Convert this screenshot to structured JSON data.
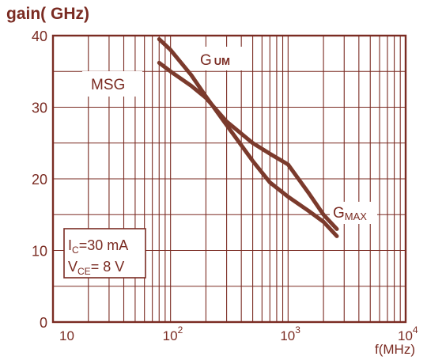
{
  "chart_data": {
    "type": "line",
    "ylabel": "gain( GHz)",
    "xlabel": "f(MHz)",
    "x_scale": "log",
    "xlim": [
      10,
      10000
    ],
    "ylim": [
      0,
      40
    ],
    "grid": true,
    "x_ticks": [
      {
        "value": 10,
        "base": "10",
        "exp": ""
      },
      {
        "value": 100,
        "base": "10",
        "exp": "2"
      },
      {
        "value": 1000,
        "base": "10",
        "exp": "3"
      },
      {
        "value": 10000,
        "base": "10",
        "exp": "4"
      }
    ],
    "y_ticks": [
      {
        "value": 0,
        "label": "0"
      },
      {
        "value": 10,
        "label": "10"
      },
      {
        "value": 20,
        "label": "20"
      },
      {
        "value": 30,
        "label": "30"
      },
      {
        "value": 40,
        "label": "40"
      }
    ],
    "series": [
      {
        "name": "G UM",
        "x": [
          80,
          100,
          150,
          200,
          300,
          500,
          700,
          1000,
          1500,
          2000,
          2600
        ],
        "y": [
          39.5,
          38,
          34.5,
          31.5,
          27.5,
          22.5,
          19.5,
          17.5,
          15.5,
          14,
          12
        ]
      },
      {
        "name": "MSG / GMAX",
        "x": [
          80,
          100,
          150,
          200,
          300,
          500,
          700,
          1000,
          1500,
          2000,
          2600
        ],
        "y": [
          36.2,
          35,
          33,
          31.3,
          28,
          25,
          23.5,
          22,
          18,
          15,
          13
        ]
      }
    ],
    "annotations": [
      {
        "id": "gum",
        "base": "G",
        "sub": "UM"
      },
      {
        "id": "msg",
        "text": "MSG"
      },
      {
        "id": "gmax",
        "base": "G",
        "sub": "MAX"
      }
    ],
    "conditions": [
      {
        "base": "I",
        "sub": "C",
        "rest": "=30  mA"
      },
      {
        "base": "V",
        "sub": "CE",
        "rest": "= 8 V"
      }
    ]
  }
}
